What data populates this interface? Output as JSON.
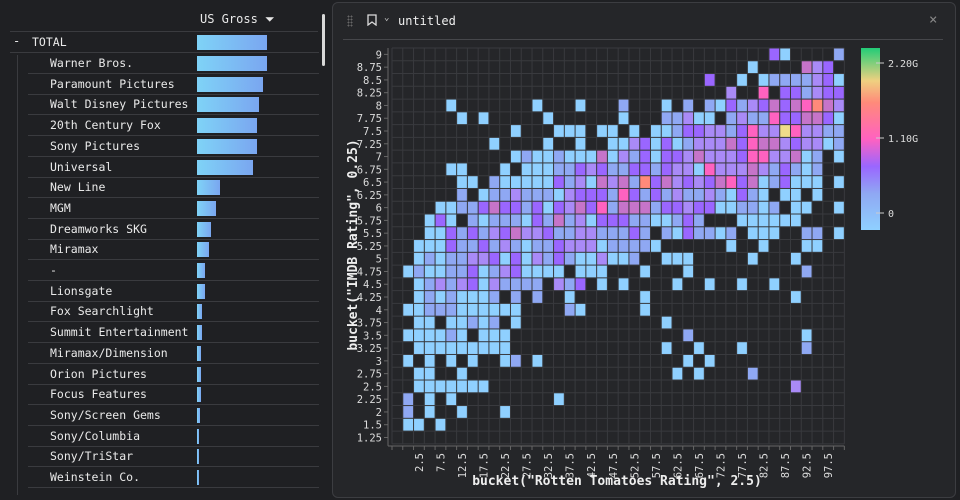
{
  "table": {
    "column_header": "US Gross",
    "sort_icon": "sort-descending-icon",
    "total": {
      "toggle": "-",
      "label": "TOTAL",
      "fraction": 1.0
    },
    "rows": [
      {
        "label": "Warner Bros.",
        "fraction": 1.0
      },
      {
        "label": "Paramount Pictures",
        "fraction": 0.94
      },
      {
        "label": "Walt Disney Pictures",
        "fraction": 0.89
      },
      {
        "label": "20th Century Fox",
        "fraction": 0.86
      },
      {
        "label": "Sony Pictures",
        "fraction": 0.86
      },
      {
        "label": "Universal",
        "fraction": 0.8
      },
      {
        "label": "New Line",
        "fraction": 0.33
      },
      {
        "label": "MGM",
        "fraction": 0.27
      },
      {
        "label": "Dreamworks SKG",
        "fraction": 0.2
      },
      {
        "label": "Miramax",
        "fraction": 0.17
      },
      {
        "label": "-",
        "fraction": 0.12
      },
      {
        "label": "Lionsgate",
        "fraction": 0.11
      },
      {
        "label": "Fox Searchlight",
        "fraction": 0.07
      },
      {
        "label": "Summit Entertainment",
        "fraction": 0.07
      },
      {
        "label": "Miramax/Dimension",
        "fraction": 0.06
      },
      {
        "label": "Orion Pictures",
        "fraction": 0.05
      },
      {
        "label": "Focus Features",
        "fraction": 0.05
      },
      {
        "label": "Sony/Screen Gems",
        "fraction": 0.04
      },
      {
        "label": "Sony/Columbia",
        "fraction": 0.03
      },
      {
        "label": "Sony/TriStar",
        "fraction": 0.03
      },
      {
        "label": "Weinstein Co.",
        "fraction": 0.03
      }
    ]
  },
  "panel": {
    "title": "untitled",
    "close": "×",
    "chevron": "⌄"
  },
  "chart_data": {
    "type": "heatmap",
    "xlabel": "bucket(\"Rotten Tomatoes Rating\", 2.5)",
    "ylabel": "bucket(\"IMDB Rating\", 0.25)",
    "x_categories": [
      -2.5,
      0,
      2.5,
      5,
      7.5,
      10,
      12.5,
      15,
      17.5,
      20,
      22.5,
      25,
      27.5,
      30,
      32.5,
      35,
      37.5,
      40,
      42.5,
      45,
      47.5,
      50,
      52.5,
      55,
      57.5,
      60,
      62.5,
      65,
      67.5,
      70,
      72.5,
      75,
      77.5,
      80,
      82.5,
      85,
      87.5,
      90,
      92.5,
      95,
      97.5,
      100
    ],
    "x_tick_labels": [
      "2.5",
      "7.5",
      "12.5",
      "17.5",
      "22.5",
      "27.5",
      "32.5",
      "37.5",
      "42.5",
      "47.5",
      "52.5",
      "57.5",
      "62.5",
      "67.5",
      "72.5",
      "77.5",
      "82.5",
      "87.5",
      "92.5",
      "97.5"
    ],
    "y_categories": [
      "9",
      "8.75",
      "8.5",
      "8.25",
      "8",
      "7.75",
      "7.5",
      "7.25",
      "7",
      "6.75",
      "6.5",
      "6.25",
      "6",
      "5.75",
      "5.5",
      "5.25",
      "5",
      "4.75",
      "4.5",
      "4.25",
      "4",
      "3.75",
      "3.5",
      "3.25",
      "3",
      "2.75",
      "2.5",
      "2.25",
      "2",
      "1.5",
      "1.25"
    ],
    "level_colors": {
      "a": "#8fd0ff",
      "b": "#8fa8f3",
      "c": "#a98af7",
      "d": "#9a66ff",
      "e": "#c674c9",
      "f": "#ff62c0",
      "h": "#ff8a7a",
      "g": "#efdb8a"
    },
    "cells": [
      "35d 36a 41b",
      "33a 38e 39c 40d",
      "29d 32a 34a 35b 36b 37b 38b 39c 40d 41a",
      "31c 34f 36d 37d 38b 39c 40d 41d",
      "5a 13a 17a 21b 25a 27b 29b 30a 31d 32b 33c 34d 35e 36d 37e 38f 39h 40e 41c",
      "6a 8a 14a 21a 25b 26b 27c 28a 29a 31b 32c 33b 34b 35f 36d 37d 38e 39e 40d 41a",
      "11a 15a 16a 17a 19a 20a 22a 24a 25a 26b 27d 28d 29c 30c 31b 32d 33f 34c 35c 36g 37f 38c 39c 40b 41b",
      "9a 14a 17a 20a 21a 22c 23d 24a 25d 26a 27b 28c 29c 30c 31e 32d 33f 34e 35e 36c 37d 38c 39c 40a 41b",
      "11a 12b 13a 14a 15b 16a 17a 18a 19e 20a 21c 22b 23d 24a 25d 26d 27c 28e 29c 30c 31c 32d 33f 34f 35c 36c 37e 38a 39b 41a",
      "5a 6a 10a 12a 13a 14a 15b 16b 17d 18c 19d 20b 21b 22d 23d 24b 25d 26c 27c 28a 29f 30c 31c 32c 33e 34c 35b 36d 37b 38a 39b",
      "6a 7a 9b 10a 11a 12a 13a 14a 15d 16b 17c 18a 19e 20c 21e 22b 23h 24d 25e 26c 27d 28c 29d 30e 31f 32d 33e 34a 35b 36d 37a 38a 39a 41a",
      "6b 8a 9b 10b 11c 12b 13b 14b 15a 16c 17d 18d 19d 20b 21f 22d 23b 24d 25b 26c 27b 28b 29c 30b 31a 32d 33b 34a 36a 37a 39a",
      "4a 5a 6b 7b 8d 9e 10d 11d 12b 13d 14a 15d 16c 17e 18d 19f 20b 21e 22e 23e 24b 25d 26d 27c 28d 29d 30a 31a 32b 33b 34a 35b 37a 38a 41a",
      "3a 4d 5a 7b 8a 9b 10b 11b 12a 13d 14b 15e 16b 17c 18a 19d 20d 21d 22b 23b 24a 25a 26b 27d 28b 32a 33a 34a 35a 36a 37a",
      "3a 4a 5d 6b 7d 8b 9c 10d 11e 12c 13c 14d 15b 16b 17c 18c 19b 20b 21b 22d 23b 25b 26a 27d 28b 29b 30a 31b 33a 34a 35a 38b 39b 41a",
      "2a 3a 4a 5d 6b 7b 8d 9b 10c 11b 12a 13b 14b 15d 16c 17c 18c 19a 20b 21b 22b 23b 24a 31a 34a 38a 39a",
      "2a 3b 4a 5b 6b 7c 8c 9d 10a 11d 12a 13c 14b 15d 16b 17a 18a 19c 20a 21a 22b 25a 26a 27a 33a 37a",
      "1a 2b 3a 4a 5b 6b 7d 8a 9b 10c 11d 12a 13a 14a 15a 17a 18a 19a 23a 27a 38b",
      "2a 3b 4c 5b 6c 7d 8a 9c 10b 11b 12b 13b 15c 16b 17d 19a 21a 26a 29a 32a 35a",
      "2a 3b 4a 5b 6a 7a 8a 9b 11b 13b 16a 23a 37a",
      "1a 2a 3b 4b 5b 6a 7a 8a 9a 10a 11a 16b 17a 23a",
      "2a 3a 5a 6a 7b 8a 9b 11a 25a",
      "1a 2a 3a 4a 5b 6a 8a 9a 10a 27b 38a",
      "2a 3a 4a 5a 6a 7a 8a 9a 10a 25a 28a 32a 38b",
      "1a 3a 5a 7a 10a 11b 13a 27a 29a",
      "2a 3a 6a 26a 28a 33b",
      "2a 3a 4a 5a 6a 7a 8a 37c",
      "1b 3a 5a 15a",
      "1b 3a 6a 10a",
      "1a 2a 4a",
      ""
    ],
    "legend": {
      "type": "color-scale",
      "ticks": [
        "2.20G",
        "1.10G",
        "0"
      ],
      "range": [
        0,
        2200000000.0
      ],
      "placement": "right"
    }
  }
}
